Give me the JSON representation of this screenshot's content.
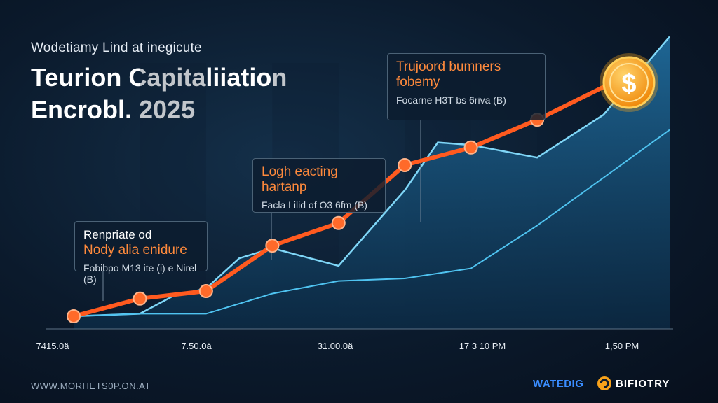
{
  "header": {
    "subtitle": "Wodetiamy Lind at inegicute",
    "title": "Teurion Capitaliiation Encrobl. 2025"
  },
  "callouts": [
    {
      "label1": "Renpriate od",
      "label2": "Nody alia enidure",
      "value": "Fobibpo M13 ite (i) e Nirel (B)"
    },
    {
      "label1": "Logh eacting",
      "label2": "hartanp",
      "value": "Facla Lilid of O3 6fm (B)"
    },
    {
      "label1": "Trujoord bumners",
      "label2": "fobemy",
      "value": "Focarne H3T bs 6riva (B)"
    }
  ],
  "footer": {
    "url": "WWW.MORHETS0P.ON.AT",
    "brand1": "WATEDIG",
    "brand2": "BIFIOTRY"
  },
  "colors": {
    "line": "#ff5a1f",
    "cyan": "#4fc3f0",
    "area": "#1b5f8c",
    "coin": "#f7a21b"
  },
  "icons": {
    "end_marker": "dollar-coin-icon",
    "brand_logo": "orange-swirl-icon"
  },
  "chart_data": {
    "type": "line",
    "x_ticks": [
      "7415.0ä",
      "7.50.0ä",
      "31.00.0ä",
      "17 3 10 PM",
      "1,50 PM"
    ],
    "x_tick_index": [
      0,
      2,
      4,
      7,
      9
    ],
    "ylim": [
      0,
      10
    ],
    "grid": false,
    "legend": "none",
    "series": [
      {
        "role": "main line with markers",
        "x": [
          0,
          1,
          2,
          3,
          4,
          5,
          6,
          7,
          8
        ],
        "values": [
          0.5,
          1.2,
          1.5,
          3.3,
          4.2,
          6.5,
          7.2,
          8.3,
          9.6
        ]
      },
      {
        "role": "upper area line",
        "x": [
          0,
          1,
          1.5,
          2,
          2.5,
          3,
          4,
          5,
          5.5,
          6,
          7,
          8,
          9
        ],
        "values": [
          0.5,
          0.6,
          1.3,
          1.6,
          2.8,
          3.2,
          2.5,
          5.5,
          7.4,
          7.3,
          6.8,
          8.5,
          11.6
        ]
      },
      {
        "role": "lower cyan line",
        "x": [
          0,
          1,
          2,
          3,
          4,
          5,
          6,
          7,
          8,
          9
        ],
        "values": [
          0.5,
          0.6,
          0.6,
          1.4,
          1.9,
          2.0,
          2.4,
          4.1,
          6.0,
          7.9
        ]
      }
    ],
    "annotation_points": [
      1,
      4,
      6
    ]
  }
}
